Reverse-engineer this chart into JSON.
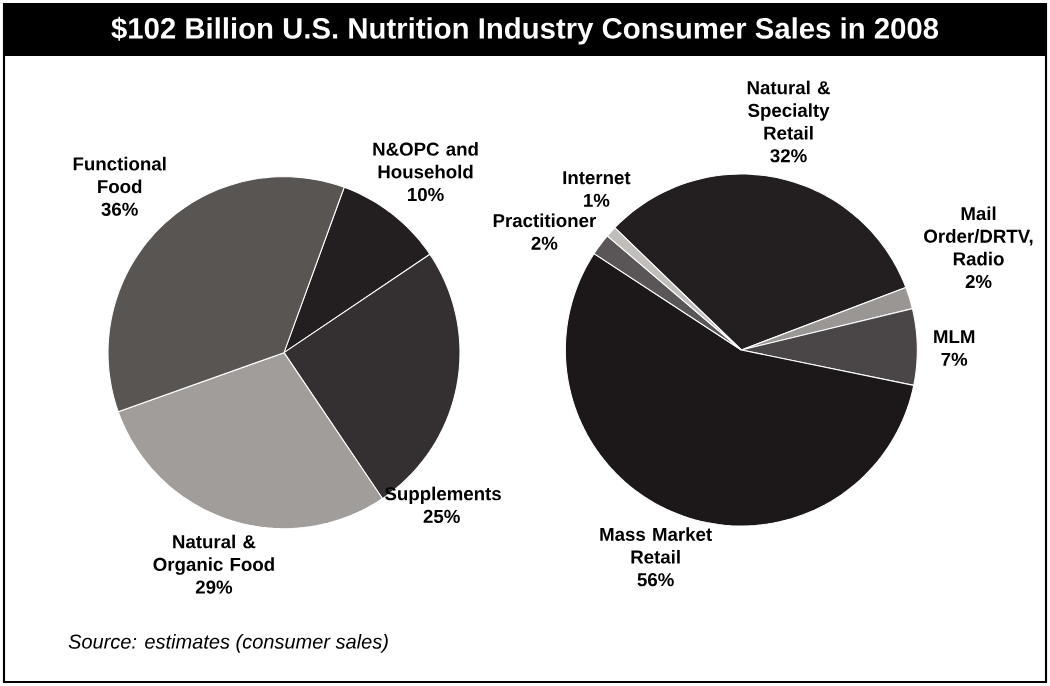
{
  "chart_data": [
    {
      "type": "pie",
      "title": "$102 Billion U.S. Nutrition Industry Consumer Sales in 2008",
      "categories": [
        "N&OPC and Household",
        "Supplements",
        "Natural & Organic Food",
        "Functional Food"
      ],
      "values": [
        10,
        25,
        29,
        36
      ],
      "value_labels": [
        "10%",
        "25%",
        "29%",
        "36%"
      ],
      "colors": [
        "#231f20",
        "#343031",
        "#a19d9a",
        "#595553"
      ],
      "legend": false
    },
    {
      "type": "pie",
      "categories": [
        "Natural & Specialty Retail",
        "Mail Order/DRTV, Radio",
        "MLM",
        "Mass Market Retail",
        "Practitioner",
        "Internet"
      ],
      "values": [
        32,
        2,
        7,
        56,
        2,
        1
      ],
      "value_labels": [
        "32%",
        "2%",
        "7%",
        "56%",
        "2%",
        "1%"
      ],
      "colors": [
        "#231f20",
        "#9a9693",
        "#4a4647",
        "#1c181a",
        "#5a5657",
        "#c0bdba"
      ],
      "annotations": [
        "Source: estimates (consumer sales)"
      ],
      "legend": false
    }
  ]
}
